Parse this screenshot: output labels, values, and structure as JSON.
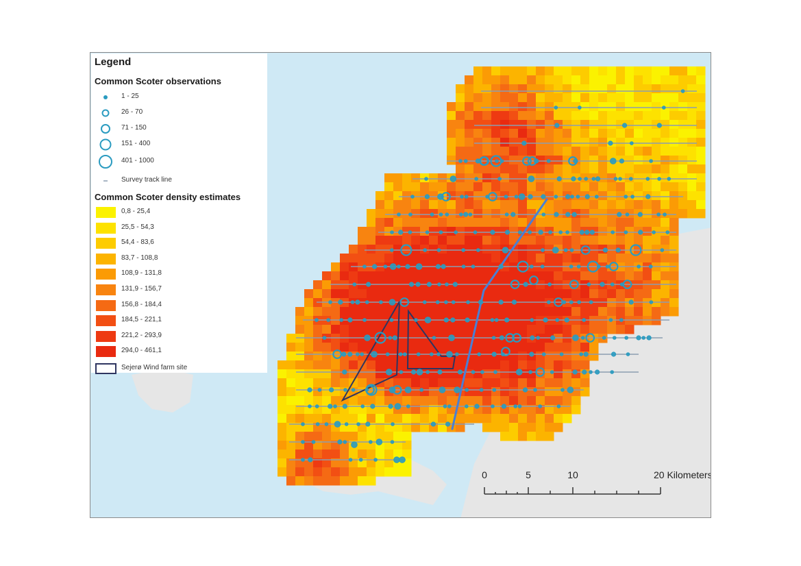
{
  "legend": {
    "title": "Legend",
    "observations_heading": "Common Scoter observations",
    "observation_classes": [
      {
        "label": "1 - 25",
        "symbol": "filled-dot-icon"
      },
      {
        "label": "26 - 70",
        "symbol": "small-ring-icon"
      },
      {
        "label": "71 - 150",
        "symbol": "medium-ring-icon"
      },
      {
        "label": "151 - 400",
        "symbol": "large-ring-icon"
      },
      {
        "label": "401 - 1000",
        "symbol": "xlarge-ring-icon"
      }
    ],
    "track_label": "Survey track line",
    "density_heading": "Common Scoter density estimates",
    "density_classes": [
      {
        "label": "0,8 - 25,4",
        "color": "#fbf200"
      },
      {
        "label": "25,5 - 54,3",
        "color": "#fde200"
      },
      {
        "label": "54,4 - 83,6",
        "color": "#fdcc00"
      },
      {
        "label": "83,7 - 108,8",
        "color": "#fcb400"
      },
      {
        "label": "108,9 - 131,8",
        "color": "#fb9b05"
      },
      {
        "label": "131,9 - 156,7",
        "color": "#f88410"
      },
      {
        "label": "156,8 - 184,4",
        "color": "#f56a14"
      },
      {
        "label": "184,5 - 221,1",
        "color": "#f24f13"
      },
      {
        "label": "221,2 - 293,9",
        "color": "#ee3a12"
      },
      {
        "label": "294,0 - 461,1",
        "color": "#e92a10"
      }
    ],
    "windfarm_label": "Sejerø Wind farm site"
  },
  "scalebar": {
    "ticks": [
      "0",
      "5",
      "10",
      "20 Kilometers"
    ]
  },
  "colors": {
    "sea": "#cfe9f5",
    "land": "#e6e6e6",
    "observation_marker": "#2a9bc0",
    "track_line": "#8c9db0",
    "boundary_line": "#4a7fd4",
    "windfarm_outline": "#2e3560"
  }
}
